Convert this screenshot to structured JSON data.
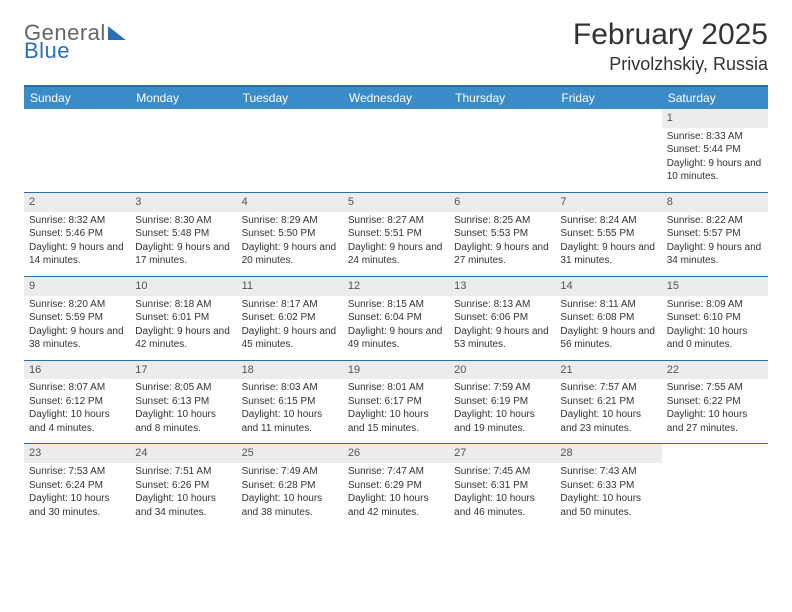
{
  "logo": {
    "line1": "General",
    "line2": "Blue"
  },
  "title": "February 2025",
  "location": "Privolzhskiy, Russia",
  "colors": {
    "header_bg": "#3b8bc9",
    "rule": "#2a6fb5",
    "daynum_bg": "#ececec",
    "text": "#333333",
    "logo_gray": "#666666",
    "logo_blue": "#2a6fb5"
  },
  "weekday_labels": [
    "Sunday",
    "Monday",
    "Tuesday",
    "Wednesday",
    "Thursday",
    "Friday",
    "Saturday"
  ],
  "weeks": [
    [
      {
        "empty": true
      },
      {
        "empty": true
      },
      {
        "empty": true
      },
      {
        "empty": true
      },
      {
        "empty": true
      },
      {
        "empty": true
      },
      {
        "day": "1",
        "sunrise": "Sunrise: 8:33 AM",
        "sunset": "Sunset: 5:44 PM",
        "daylight": "Daylight: 9 hours and 10 minutes."
      }
    ],
    [
      {
        "day": "2",
        "sunrise": "Sunrise: 8:32 AM",
        "sunset": "Sunset: 5:46 PM",
        "daylight": "Daylight: 9 hours and 14 minutes."
      },
      {
        "day": "3",
        "sunrise": "Sunrise: 8:30 AM",
        "sunset": "Sunset: 5:48 PM",
        "daylight": "Daylight: 9 hours and 17 minutes."
      },
      {
        "day": "4",
        "sunrise": "Sunrise: 8:29 AM",
        "sunset": "Sunset: 5:50 PM",
        "daylight": "Daylight: 9 hours and 20 minutes."
      },
      {
        "day": "5",
        "sunrise": "Sunrise: 8:27 AM",
        "sunset": "Sunset: 5:51 PM",
        "daylight": "Daylight: 9 hours and 24 minutes."
      },
      {
        "day": "6",
        "sunrise": "Sunrise: 8:25 AM",
        "sunset": "Sunset: 5:53 PM",
        "daylight": "Daylight: 9 hours and 27 minutes."
      },
      {
        "day": "7",
        "sunrise": "Sunrise: 8:24 AM",
        "sunset": "Sunset: 5:55 PM",
        "daylight": "Daylight: 9 hours and 31 minutes."
      },
      {
        "day": "8",
        "sunrise": "Sunrise: 8:22 AM",
        "sunset": "Sunset: 5:57 PM",
        "daylight": "Daylight: 9 hours and 34 minutes."
      }
    ],
    [
      {
        "day": "9",
        "sunrise": "Sunrise: 8:20 AM",
        "sunset": "Sunset: 5:59 PM",
        "daylight": "Daylight: 9 hours and 38 minutes."
      },
      {
        "day": "10",
        "sunrise": "Sunrise: 8:18 AM",
        "sunset": "Sunset: 6:01 PM",
        "daylight": "Daylight: 9 hours and 42 minutes."
      },
      {
        "day": "11",
        "sunrise": "Sunrise: 8:17 AM",
        "sunset": "Sunset: 6:02 PM",
        "daylight": "Daylight: 9 hours and 45 minutes."
      },
      {
        "day": "12",
        "sunrise": "Sunrise: 8:15 AM",
        "sunset": "Sunset: 6:04 PM",
        "daylight": "Daylight: 9 hours and 49 minutes."
      },
      {
        "day": "13",
        "sunrise": "Sunrise: 8:13 AM",
        "sunset": "Sunset: 6:06 PM",
        "daylight": "Daylight: 9 hours and 53 minutes."
      },
      {
        "day": "14",
        "sunrise": "Sunrise: 8:11 AM",
        "sunset": "Sunset: 6:08 PM",
        "daylight": "Daylight: 9 hours and 56 minutes."
      },
      {
        "day": "15",
        "sunrise": "Sunrise: 8:09 AM",
        "sunset": "Sunset: 6:10 PM",
        "daylight": "Daylight: 10 hours and 0 minutes."
      }
    ],
    [
      {
        "day": "16",
        "sunrise": "Sunrise: 8:07 AM",
        "sunset": "Sunset: 6:12 PM",
        "daylight": "Daylight: 10 hours and 4 minutes."
      },
      {
        "day": "17",
        "sunrise": "Sunrise: 8:05 AM",
        "sunset": "Sunset: 6:13 PM",
        "daylight": "Daylight: 10 hours and 8 minutes."
      },
      {
        "day": "18",
        "sunrise": "Sunrise: 8:03 AM",
        "sunset": "Sunset: 6:15 PM",
        "daylight": "Daylight: 10 hours and 11 minutes."
      },
      {
        "day": "19",
        "sunrise": "Sunrise: 8:01 AM",
        "sunset": "Sunset: 6:17 PM",
        "daylight": "Daylight: 10 hours and 15 minutes."
      },
      {
        "day": "20",
        "sunrise": "Sunrise: 7:59 AM",
        "sunset": "Sunset: 6:19 PM",
        "daylight": "Daylight: 10 hours and 19 minutes."
      },
      {
        "day": "21",
        "sunrise": "Sunrise: 7:57 AM",
        "sunset": "Sunset: 6:21 PM",
        "daylight": "Daylight: 10 hours and 23 minutes."
      },
      {
        "day": "22",
        "sunrise": "Sunrise: 7:55 AM",
        "sunset": "Sunset: 6:22 PM",
        "daylight": "Daylight: 10 hours and 27 minutes."
      }
    ],
    [
      {
        "day": "23",
        "sunrise": "Sunrise: 7:53 AM",
        "sunset": "Sunset: 6:24 PM",
        "daylight": "Daylight: 10 hours and 30 minutes."
      },
      {
        "day": "24",
        "sunrise": "Sunrise: 7:51 AM",
        "sunset": "Sunset: 6:26 PM",
        "daylight": "Daylight: 10 hours and 34 minutes."
      },
      {
        "day": "25",
        "sunrise": "Sunrise: 7:49 AM",
        "sunset": "Sunset: 6:28 PM",
        "daylight": "Daylight: 10 hours and 38 minutes."
      },
      {
        "day": "26",
        "sunrise": "Sunrise: 7:47 AM",
        "sunset": "Sunset: 6:29 PM",
        "daylight": "Daylight: 10 hours and 42 minutes."
      },
      {
        "day": "27",
        "sunrise": "Sunrise: 7:45 AM",
        "sunset": "Sunset: 6:31 PM",
        "daylight": "Daylight: 10 hours and 46 minutes."
      },
      {
        "day": "28",
        "sunrise": "Sunrise: 7:43 AM",
        "sunset": "Sunset: 6:33 PM",
        "daylight": "Daylight: 10 hours and 50 minutes."
      },
      {
        "empty": true
      }
    ]
  ]
}
